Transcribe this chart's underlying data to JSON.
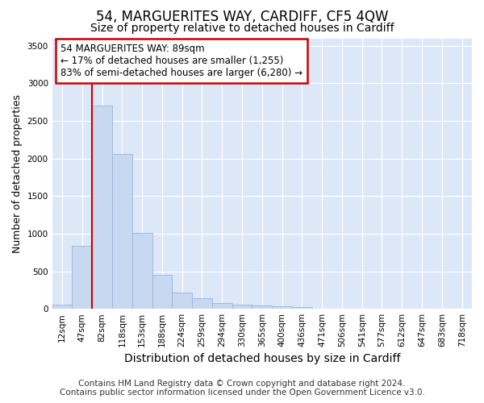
{
  "title": "54, MARGUERITES WAY, CARDIFF, CF5 4QW",
  "subtitle": "Size of property relative to detached houses in Cardiff",
  "xlabel": "Distribution of detached houses by size in Cardiff",
  "ylabel": "Number of detached properties",
  "footer_line1": "Contains HM Land Registry data © Crown copyright and database right 2024.",
  "footer_line2": "Contains public sector information licensed under the Open Government Licence v3.0.",
  "categories": [
    "12sqm",
    "47sqm",
    "82sqm",
    "118sqm",
    "153sqm",
    "188sqm",
    "224sqm",
    "259sqm",
    "294sqm",
    "330sqm",
    "365sqm",
    "400sqm",
    "436sqm",
    "471sqm",
    "506sqm",
    "541sqm",
    "577sqm",
    "612sqm",
    "647sqm",
    "683sqm",
    "718sqm"
  ],
  "values": [
    55,
    840,
    2700,
    2060,
    1010,
    450,
    215,
    140,
    75,
    55,
    40,
    30,
    20,
    3,
    2,
    2,
    1,
    1,
    1,
    1,
    1
  ],
  "bar_color": "#c8d8f0",
  "bar_edge_color": "#9ab4d8",
  "vline_x_idx": 2,
  "vline_color": "#cc0000",
  "annotation_text": "54 MARGUERITES WAY: 89sqm\n← 17% of detached houses are smaller (1,255)\n83% of semi-detached houses are larger (6,280) →",
  "annotation_box_facecolor": "#ffffff",
  "annotation_box_edgecolor": "#cc0000",
  "ylim": [
    0,
    3600
  ],
  "yticks": [
    0,
    500,
    1000,
    1500,
    2000,
    2500,
    3000,
    3500
  ],
  "fig_bg_color": "#ffffff",
  "plot_bg_color": "#dce8f8",
  "grid_color": "#ffffff",
  "title_fontsize": 12,
  "subtitle_fontsize": 10,
  "xlabel_fontsize": 10,
  "ylabel_fontsize": 9,
  "tick_fontsize": 7.5,
  "annotation_fontsize": 8.5,
  "footer_fontsize": 7.5
}
